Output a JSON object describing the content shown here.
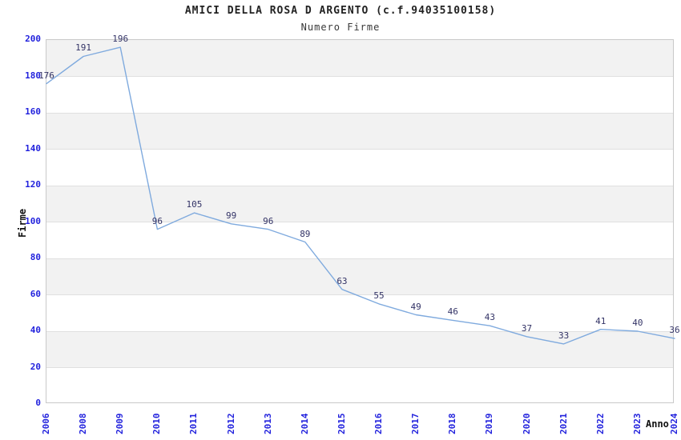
{
  "chart_data": {
    "type": "line",
    "title": "AMICI DELLA ROSA D ARGENTO (c.f.94035100158)",
    "subtitle": "Numero Firme",
    "xlabel": "Anno",
    "ylabel": "Firme",
    "categories": [
      "2006",
      "2008",
      "2009",
      "2010",
      "2011",
      "2012",
      "2013",
      "2014",
      "2015",
      "2016",
      "2017",
      "2018",
      "2019",
      "2020",
      "2021",
      "2022",
      "2023",
      "2024"
    ],
    "series": [
      {
        "name": "Numero Firme",
        "values": [
          176,
          191,
          196,
          96,
          105,
          99,
          96,
          89,
          63,
          55,
          49,
          46,
          43,
          37,
          33,
          41,
          40,
          36
        ]
      }
    ],
    "point_labels_shown": true,
    "ylim": [
      0,
      200
    ],
    "ytick_step": 20,
    "grid": "horizontal gridlines with alternating shaded bands",
    "legend": "none",
    "colors": {
      "line": "#7faade",
      "axis_tick_label": "#2222dd",
      "point_label": "#333366",
      "band_shaded": "#f2f2f2",
      "band_plain": "#ffffff",
      "grid_line": "#e0e0e0",
      "plot_border": "#c9c9c9",
      "title": "#222222",
      "subtitle": "#383838",
      "axis_title": "#111111"
    }
  }
}
